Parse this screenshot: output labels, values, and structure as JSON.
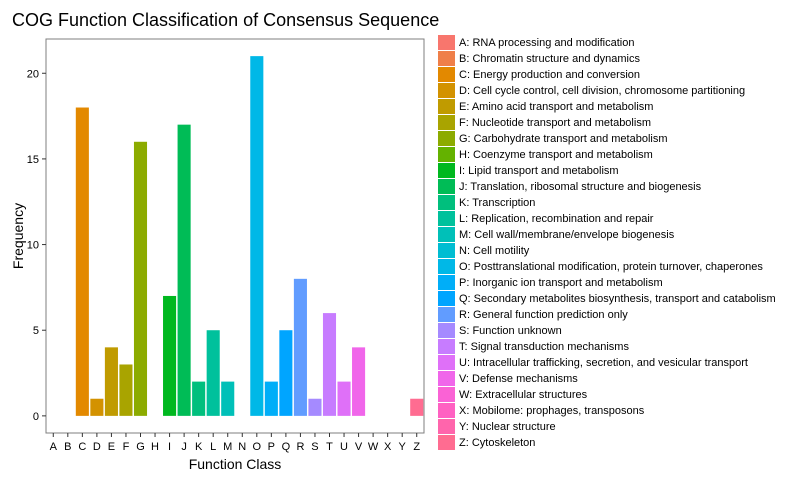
{
  "chart_data": {
    "type": "bar",
    "title": "COG Function Classification of Consensus Sequence",
    "xlabel": "Function Class",
    "ylabel": "Frequency",
    "ylim": [
      -1,
      22
    ],
    "yticks": [
      0,
      5,
      10,
      15,
      20
    ],
    "grid": false,
    "legend_position": "right",
    "categories": [
      "A",
      "B",
      "C",
      "D",
      "E",
      "F",
      "G",
      "H",
      "I",
      "J",
      "K",
      "L",
      "M",
      "N",
      "O",
      "P",
      "Q",
      "R",
      "S",
      "T",
      "U",
      "V",
      "W",
      "X",
      "Y",
      "Z"
    ],
    "values": [
      0,
      0,
      18,
      1,
      4,
      3,
      16,
      0,
      7,
      17,
      2,
      5,
      2,
      0,
      21,
      2,
      5,
      8,
      1,
      6,
      2,
      4,
      0,
      0,
      0,
      1
    ],
    "colors": [
      "#F8766D",
      "#EF7F49",
      "#E38900",
      "#D39200",
      "#C09B00",
      "#A9A400",
      "#8CAB00",
      "#64B200",
      "#00B81F",
      "#00BC56",
      "#00BF7D",
      "#00C19C",
      "#00C0B8",
      "#00BDD2",
      "#00B8E7",
      "#00AEF8",
      "#00A5FF",
      "#619CFF",
      "#A58AFF",
      "#C77CFF",
      "#DF70F8",
      "#F066EA",
      "#FA62D5",
      "#FF61C2",
      "#FF65AC",
      "#FF6C91"
    ],
    "legend": [
      "A: RNA processing and modification",
      "B: Chromatin structure and dynamics",
      "C: Energy production and conversion",
      "D: Cell cycle control, cell division, chromosome partitioning",
      "E: Amino acid transport and metabolism",
      "F: Nucleotide transport and metabolism",
      "G: Carbohydrate transport and metabolism",
      "H: Coenzyme transport and metabolism",
      "I: Lipid transport and metabolism",
      "J: Translation, ribosomal structure and biogenesis",
      "K: Transcription",
      "L: Replication, recombination and repair",
      "M: Cell wall/membrane/envelope biogenesis",
      "N: Cell motility",
      "O: Posttranslational modification, protein turnover, chaperones",
      "P: Inorganic ion transport and metabolism",
      "Q: Secondary metabolites biosynthesis, transport and catabolism",
      "R: General function prediction only",
      "S: Function unknown",
      "T: Signal transduction mechanisms",
      "U: Intracellular trafficking, secretion, and vesicular transport",
      "V: Defense mechanisms",
      "W: Extracellular structures",
      "X: Mobilome: prophages, transposons",
      "Y: Nuclear structure",
      "Z: Cytoskeleton"
    ]
  }
}
